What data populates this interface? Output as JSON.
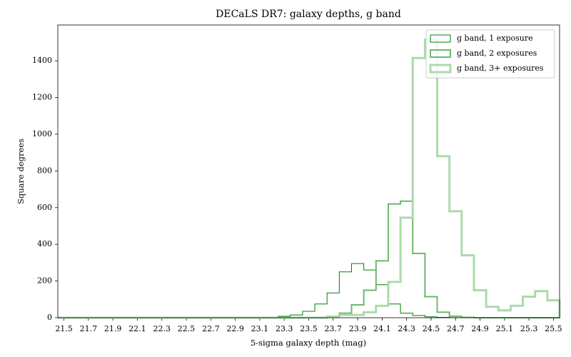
{
  "chart_data": {
    "type": "histogram",
    "title": "DECaLS DR7: galaxy depths, g band",
    "x_label": "5-sigma galaxy depth (mag)",
    "y_label": "Square degrees",
    "bins": [
      21.45,
      21.55,
      21.65,
      21.75,
      21.85,
      21.95,
      22.05,
      22.15,
      22.25,
      22.35,
      22.45,
      22.55,
      22.65,
      22.75,
      22.85,
      22.95,
      23.05,
      23.15,
      23.25,
      23.35,
      23.45,
      23.55,
      23.65,
      23.75,
      23.85,
      23.95,
      24.05,
      24.15,
      24.25,
      24.35,
      24.45,
      24.55,
      24.65,
      24.75,
      24.85,
      24.95,
      25.05,
      25.15,
      25.25,
      25.35,
      25.45,
      25.55
    ],
    "series": [
      {
        "name": "g band, 1 exposure",
        "color": "#008000",
        "line_width": 1,
        "values": [
          0,
          0,
          0,
          0,
          0,
          0,
          0,
          0,
          0,
          0,
          0,
          0,
          0,
          0,
          0,
          0,
          0,
          3,
          8,
          15,
          35,
          75,
          135,
          250,
          295,
          260,
          180,
          75,
          25,
          12,
          5,
          2,
          0,
          0,
          0,
          0,
          0,
          0,
          0,
          0,
          0
        ]
      },
      {
        "name": "g band, 2 exposures",
        "color": "#6db86d",
        "line_width": 2,
        "values": [
          0,
          0,
          0,
          0,
          0,
          0,
          0,
          0,
          0,
          0,
          0,
          0,
          0,
          0,
          0,
          0,
          0,
          0,
          0,
          0,
          0,
          2,
          8,
          25,
          70,
          150,
          310,
          620,
          635,
          350,
          115,
          30,
          8,
          2,
          0,
          0,
          0,
          0,
          0,
          0,
          0
        ]
      },
      {
        "name": "g band, 3+ exposures",
        "color": "#acd9ac",
        "line_width": 3,
        "values": [
          0,
          0,
          0,
          0,
          0,
          0,
          0,
          0,
          0,
          0,
          0,
          0,
          0,
          0,
          0,
          0,
          0,
          0,
          0,
          0,
          0,
          0,
          5,
          15,
          15,
          30,
          65,
          195,
          545,
          1415,
          1515,
          880,
          580,
          340,
          150,
          60,
          40,
          65,
          115,
          145,
          95
        ]
      }
    ],
    "xlim": [
      21.45,
      25.55
    ],
    "ylim": [
      0,
      1595
    ],
    "xticks": [
      21.5,
      21.7,
      21.9,
      22.1,
      22.3,
      22.5,
      22.7,
      22.9,
      23.1,
      23.3,
      23.5,
      23.7,
      23.9,
      24.1,
      24.3,
      24.5,
      24.7,
      24.9,
      25.1,
      25.3,
      25.5
    ],
    "yticks": [
      0,
      200,
      400,
      600,
      800,
      1000,
      1200,
      1400
    ],
    "legend": "upper right"
  }
}
